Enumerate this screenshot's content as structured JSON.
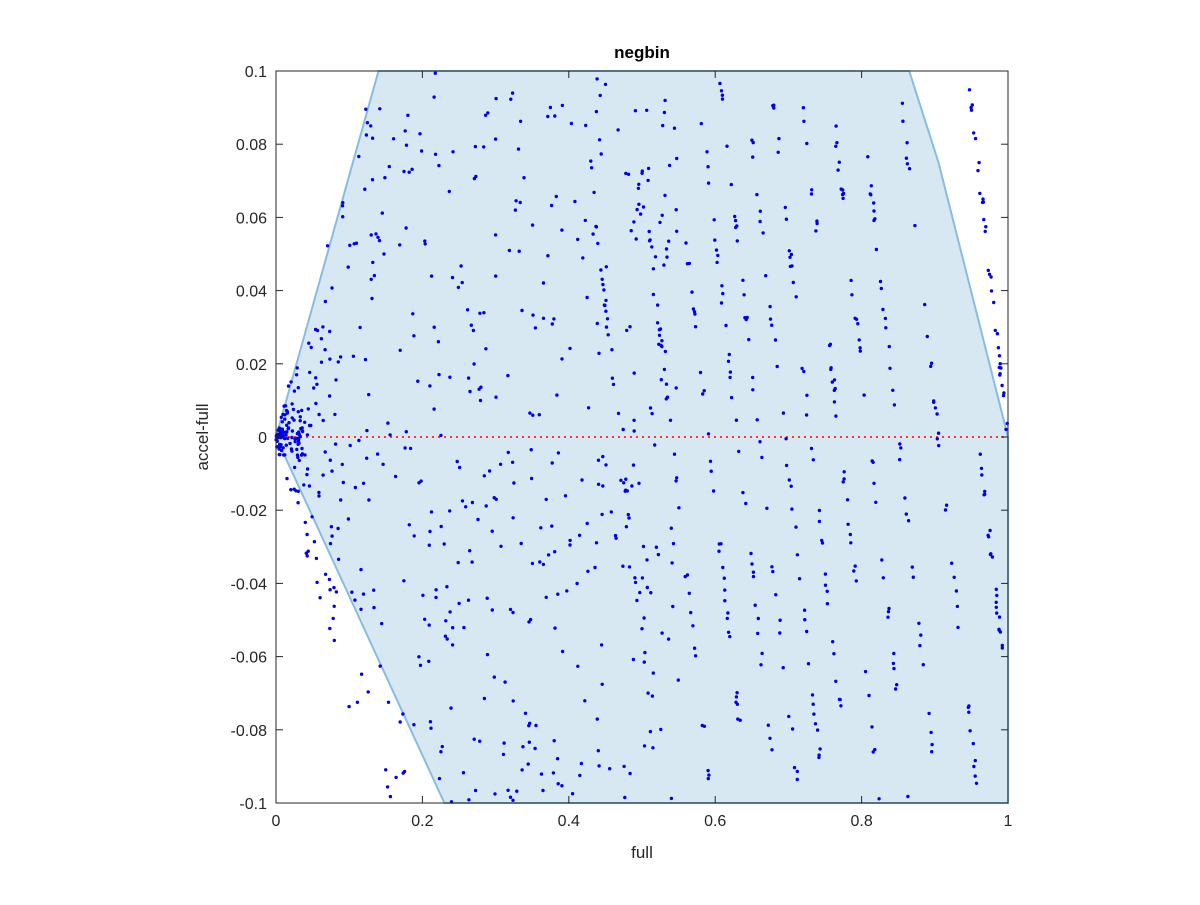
{
  "chart_data": {
    "type": "scatter",
    "title": "negbin",
    "xlabel": "full",
    "ylabel": "accel-full",
    "xlim": [
      0,
      1
    ],
    "ylim": [
      -0.1,
      0.1
    ],
    "xticks": [
      0,
      0.2,
      0.4,
      0.6,
      0.8,
      1
    ],
    "xtick_labels": [
      "0",
      "0.2",
      "0.4",
      "0.6",
      "0.8",
      "1"
    ],
    "yticks": [
      -0.1,
      -0.08,
      -0.06,
      -0.04,
      -0.02,
      0,
      0.02,
      0.04,
      0.06,
      0.08,
      0.1
    ],
    "ytick_labels": [
      "-0.1",
      "-0.08",
      "-0.06",
      "-0.04",
      "-0.02",
      "0",
      "0.02",
      "0.04",
      "0.06",
      "0.08",
      "0.1"
    ],
    "grid": false,
    "region": {
      "name": "feasible region",
      "color": "#d8e8f3",
      "edge_color": "#86bde0",
      "polygon": [
        [
          0,
          0
        ],
        [
          0.14,
          0.1
        ],
        [
          0.865,
          0.1
        ],
        [
          0.905,
          0.075
        ],
        [
          1,
          0
        ],
        [
          1,
          -0.1
        ],
        [
          0.23,
          -0.1
        ]
      ]
    },
    "reference_line": {
      "y": 0,
      "color": "#ff3333",
      "style": "dotted"
    },
    "point_color": "#0000ee",
    "point_clusters": {
      "diagonal_bands": [
        {
          "x_at_zero": 0.47,
          "y_min": -0.09,
          "y_max": 0.09
        },
        {
          "x_at_zero": 0.54,
          "y_min": -0.095,
          "y_max": 0.09
        },
        {
          "x_at_zero": 0.59,
          "y_min": -0.095,
          "y_max": 0.09
        },
        {
          "x_at_zero": 0.63,
          "y_min": -0.09,
          "y_max": 0.09
        },
        {
          "x_at_zero": 0.66,
          "y_min": -0.1,
          "y_max": 0.098
        },
        {
          "x_at_zero": 0.695,
          "y_min": -0.09,
          "y_max": 0.095
        },
        {
          "x_at_zero": 0.73,
          "y_min": -0.1,
          "y_max": 0.098
        },
        {
          "x_at_zero": 0.77,
          "y_min": -0.1,
          "y_max": 0.098
        },
        {
          "x_at_zero": 0.81,
          "y_min": -0.1,
          "y_max": 0.087
        },
        {
          "x_at_zero": 0.85,
          "y_min": -0.1,
          "y_max": 0.08
        },
        {
          "x_at_zero": 0.905,
          "y_min": -0.095,
          "y_max": 0.097
        },
        {
          "x_at_zero": 0.96,
          "y_min": -0.1,
          "y_max": 0.0
        },
        {
          "x_at_zero": 1.0,
          "y_min": 0.0,
          "y_max": 0.097
        }
      ],
      "scattered_cloud": {
        "x_range": [
          0,
          0.55
        ],
        "y_range": [
          -0.1,
          0.1
        ]
      }
    }
  }
}
